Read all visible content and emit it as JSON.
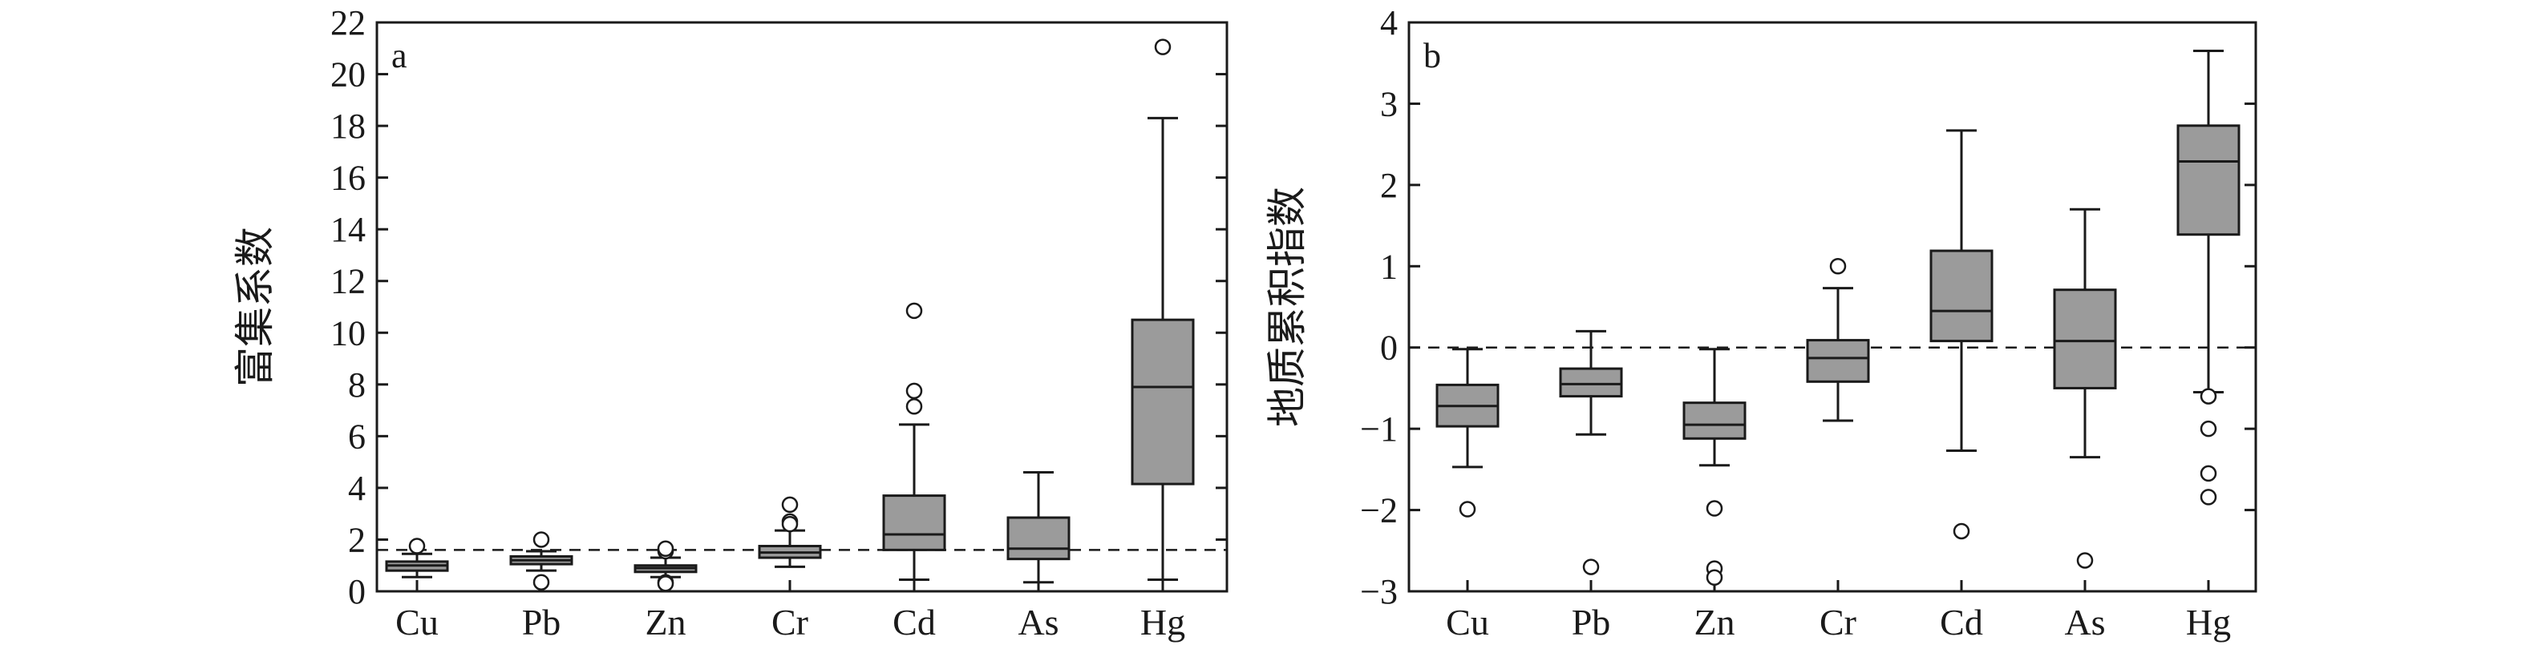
{
  "chart_data": [
    {
      "type": "box",
      "panel_label": "a",
      "title": "",
      "xlabel": "",
      "ylabel": "富集系数",
      "categories": [
        "Cu",
        "Pb",
        "Zn",
        "Cr",
        "Cd",
        "As",
        "Hg"
      ],
      "ylim": [
        0,
        22
      ],
      "yticks": [
        0,
        2,
        4,
        6,
        8,
        10,
        12,
        14,
        16,
        18,
        20,
        22
      ],
      "reference_line": 1.6,
      "boxes": [
        {
          "category": "Cu",
          "whisker_low": 0.55,
          "q1": 0.8,
          "median": 1.0,
          "q3": 1.15,
          "whisker_high": 1.45,
          "outliers": [
            1.75
          ]
        },
        {
          "category": "Pb",
          "whisker_low": 0.8,
          "q1": 1.05,
          "median": 1.2,
          "q3": 1.35,
          "whisker_high": 1.55,
          "outliers": [
            2.0,
            0.35
          ]
        },
        {
          "category": "Zn",
          "whisker_low": 0.55,
          "q1": 0.75,
          "median": 0.9,
          "q3": 1.0,
          "whisker_high": 1.3,
          "outliers": [
            1.55,
            1.65,
            0.35,
            0.3
          ]
        },
        {
          "category": "Cr",
          "whisker_low": 0.95,
          "q1": 1.3,
          "median": 1.5,
          "q3": 1.75,
          "whisker_high": 2.35,
          "outliers": [
            3.35,
            2.7,
            2.6
          ]
        },
        {
          "category": "Cd",
          "whisker_low": 0.45,
          "q1": 1.6,
          "median": 2.2,
          "q3": 3.7,
          "whisker_high": 6.45,
          "outliers": [
            7.15,
            7.75,
            10.85
          ]
        },
        {
          "category": "As",
          "whisker_low": 0.35,
          "q1": 1.25,
          "median": 1.65,
          "q3": 2.85,
          "whisker_high": 4.6,
          "outliers": []
        },
        {
          "category": "Hg",
          "whisker_low": 0.45,
          "q1": 4.15,
          "median": 7.9,
          "q3": 10.5,
          "whisker_high": 18.3,
          "outliers": [
            21.05
          ]
        }
      ]
    },
    {
      "type": "box",
      "panel_label": "b",
      "title": "",
      "xlabel": "",
      "ylabel": "地质累积指数",
      "categories": [
        "Cu",
        "Pb",
        "Zn",
        "Cr",
        "Cd",
        "As",
        "Hg"
      ],
      "ylim": [
        -3,
        4
      ],
      "yticks": [
        -3,
        -2,
        -1,
        0,
        1,
        2,
        3,
        4
      ],
      "reference_line": 0,
      "boxes": [
        {
          "category": "Cu",
          "whisker_low": -1.47,
          "q1": -0.97,
          "median": -0.72,
          "q3": -0.46,
          "whisker_high": -0.02,
          "outliers": [
            -1.99
          ]
        },
        {
          "category": "Pb",
          "whisker_low": -1.07,
          "q1": -0.6,
          "median": -0.45,
          "q3": -0.26,
          "whisker_high": 0.2,
          "outliers": [
            -2.7
          ]
        },
        {
          "category": "Zn",
          "whisker_low": -1.45,
          "q1": -1.12,
          "median": -0.95,
          "q3": -0.68,
          "whisker_high": -0.02,
          "outliers": [
            -1.98,
            -2.72,
            -2.83
          ]
        },
        {
          "category": "Cr",
          "whisker_low": -0.9,
          "q1": -0.42,
          "median": -0.13,
          "q3": 0.09,
          "whisker_high": 0.73,
          "outliers": [
            1.0
          ]
        },
        {
          "category": "Cd",
          "whisker_low": -1.27,
          "q1": 0.08,
          "median": 0.45,
          "q3": 1.19,
          "whisker_high": 2.67,
          "outliers": [
            -2.26
          ]
        },
        {
          "category": "As",
          "whisker_low": -1.35,
          "q1": -0.5,
          "median": 0.08,
          "q3": 0.71,
          "whisker_high": 1.7,
          "outliers": [
            -2.62
          ]
        },
        {
          "category": "Hg",
          "whisker_low": -0.55,
          "q1": 1.39,
          "median": 2.29,
          "q3": 2.73,
          "whisker_high": 3.65,
          "outliers": [
            -0.6,
            -1.0,
            -1.55,
            -1.84
          ]
        }
      ]
    }
  ],
  "colors": {
    "box_fill": "#9b9b9b",
    "line": "#1a1a1a",
    "background": "#ffffff"
  }
}
